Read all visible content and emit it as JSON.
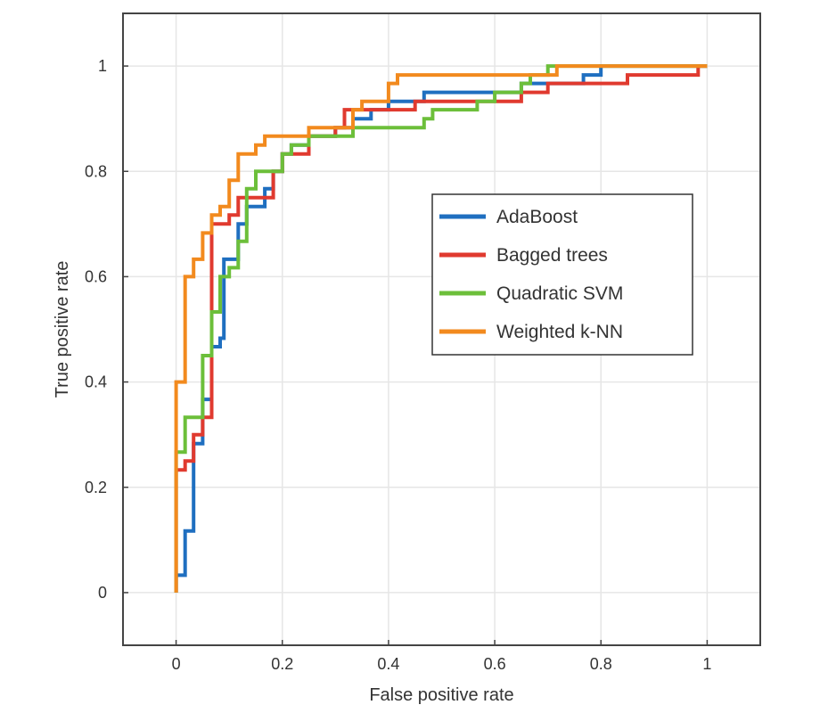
{
  "chart_data": {
    "type": "line",
    "title": "",
    "xlabel": "False positive rate",
    "ylabel": "True positive rate",
    "xlim": [
      -0.1,
      1.1
    ],
    "ylim": [
      -0.1,
      1.1
    ],
    "grid": true,
    "legend_position": "right",
    "xticks": [
      0,
      0.2,
      0.4,
      0.6,
      0.8,
      1
    ],
    "xtick_labels": [
      "0",
      "0.2",
      "0.4",
      "0.6",
      "0.8",
      "1"
    ],
    "yticks": [
      0,
      0.2,
      0.4,
      0.6,
      0.8,
      1
    ],
    "ytick_labels": [
      "0",
      "0.2",
      "0.4",
      "0.6",
      "0.8",
      "1"
    ],
    "series": [
      {
        "name": "AdaBoost",
        "color": "#1f6fc0",
        "points": [
          [
            0,
            0
          ],
          [
            0,
            0.033
          ],
          [
            0.017,
            0.033
          ],
          [
            0.017,
            0.117
          ],
          [
            0.033,
            0.117
          ],
          [
            0.033,
            0.283
          ],
          [
            0.05,
            0.283
          ],
          [
            0.05,
            0.367
          ],
          [
            0.067,
            0.367
          ],
          [
            0.067,
            0.467
          ],
          [
            0.083,
            0.467
          ],
          [
            0.083,
            0.483
          ],
          [
            0.09,
            0.483
          ],
          [
            0.09,
            0.633
          ],
          [
            0.117,
            0.633
          ],
          [
            0.117,
            0.7
          ],
          [
            0.133,
            0.7
          ],
          [
            0.133,
            0.733
          ],
          [
            0.167,
            0.733
          ],
          [
            0.167,
            0.767
          ],
          [
            0.183,
            0.767
          ],
          [
            0.183,
            0.8
          ],
          [
            0.2,
            0.8
          ],
          [
            0.2,
            0.833
          ],
          [
            0.217,
            0.833
          ],
          [
            0.217,
            0.85
          ],
          [
            0.25,
            0.85
          ],
          [
            0.25,
            0.867
          ],
          [
            0.3,
            0.867
          ],
          [
            0.3,
            0.883
          ],
          [
            0.333,
            0.883
          ],
          [
            0.333,
            0.9
          ],
          [
            0.367,
            0.9
          ],
          [
            0.367,
            0.917
          ],
          [
            0.4,
            0.917
          ],
          [
            0.4,
            0.933
          ],
          [
            0.467,
            0.933
          ],
          [
            0.467,
            0.95
          ],
          [
            0.65,
            0.95
          ],
          [
            0.65,
            0.967
          ],
          [
            0.767,
            0.967
          ],
          [
            0.767,
            0.983
          ],
          [
            0.8,
            0.983
          ],
          [
            0.8,
            1
          ],
          [
            1,
            1
          ]
        ]
      },
      {
        "name": "Bagged trees",
        "color": "#e03a2f",
        "points": [
          [
            0,
            0
          ],
          [
            0,
            0.233
          ],
          [
            0.017,
            0.233
          ],
          [
            0.017,
            0.25
          ],
          [
            0.033,
            0.25
          ],
          [
            0.033,
            0.3
          ],
          [
            0.05,
            0.3
          ],
          [
            0.05,
            0.333
          ],
          [
            0.067,
            0.333
          ],
          [
            0.067,
            0.7
          ],
          [
            0.1,
            0.7
          ],
          [
            0.1,
            0.717
          ],
          [
            0.117,
            0.717
          ],
          [
            0.117,
            0.75
          ],
          [
            0.183,
            0.75
          ],
          [
            0.183,
            0.8
          ],
          [
            0.2,
            0.8
          ],
          [
            0.2,
            0.833
          ],
          [
            0.25,
            0.833
          ],
          [
            0.25,
            0.867
          ],
          [
            0.3,
            0.867
          ],
          [
            0.3,
            0.883
          ],
          [
            0.317,
            0.883
          ],
          [
            0.317,
            0.917
          ],
          [
            0.45,
            0.917
          ],
          [
            0.45,
            0.933
          ],
          [
            0.65,
            0.933
          ],
          [
            0.65,
            0.95
          ],
          [
            0.7,
            0.95
          ],
          [
            0.7,
            0.967
          ],
          [
            0.85,
            0.967
          ],
          [
            0.85,
            0.983
          ],
          [
            0.983,
            0.983
          ],
          [
            0.983,
            1
          ],
          [
            1,
            1
          ]
        ]
      },
      {
        "name": "Quadratic SVM",
        "color": "#6cbf3a",
        "points": [
          [
            0,
            0
          ],
          [
            0,
            0.267
          ],
          [
            0.017,
            0.267
          ],
          [
            0.017,
            0.333
          ],
          [
            0.05,
            0.333
          ],
          [
            0.05,
            0.45
          ],
          [
            0.067,
            0.45
          ],
          [
            0.067,
            0.533
          ],
          [
            0.083,
            0.533
          ],
          [
            0.083,
            0.6
          ],
          [
            0.1,
            0.6
          ],
          [
            0.1,
            0.617
          ],
          [
            0.117,
            0.617
          ],
          [
            0.117,
            0.667
          ],
          [
            0.133,
            0.667
          ],
          [
            0.133,
            0.767
          ],
          [
            0.15,
            0.767
          ],
          [
            0.15,
            0.8
          ],
          [
            0.2,
            0.8
          ],
          [
            0.2,
            0.833
          ],
          [
            0.217,
            0.833
          ],
          [
            0.217,
            0.85
          ],
          [
            0.25,
            0.85
          ],
          [
            0.25,
            0.867
          ],
          [
            0.333,
            0.867
          ],
          [
            0.333,
            0.883
          ],
          [
            0.467,
            0.883
          ],
          [
            0.467,
            0.9
          ],
          [
            0.483,
            0.9
          ],
          [
            0.483,
            0.917
          ],
          [
            0.567,
            0.917
          ],
          [
            0.567,
            0.933
          ],
          [
            0.6,
            0.933
          ],
          [
            0.6,
            0.95
          ],
          [
            0.65,
            0.95
          ],
          [
            0.65,
            0.967
          ],
          [
            0.667,
            0.967
          ],
          [
            0.667,
            0.983
          ],
          [
            0.7,
            0.983
          ],
          [
            0.7,
            1
          ],
          [
            1,
            1
          ]
        ]
      },
      {
        "name": "Weighted k-NN",
        "color": "#f28a1e",
        "points": [
          [
            0,
            0
          ],
          [
            0,
            0.4
          ],
          [
            0.017,
            0.4
          ],
          [
            0.017,
            0.6
          ],
          [
            0.033,
            0.6
          ],
          [
            0.033,
            0.633
          ],
          [
            0.05,
            0.633
          ],
          [
            0.05,
            0.683
          ],
          [
            0.067,
            0.683
          ],
          [
            0.067,
            0.717
          ],
          [
            0.083,
            0.717
          ],
          [
            0.083,
            0.733
          ],
          [
            0.1,
            0.733
          ],
          [
            0.1,
            0.783
          ],
          [
            0.117,
            0.783
          ],
          [
            0.117,
            0.833
          ],
          [
            0.15,
            0.833
          ],
          [
            0.15,
            0.85
          ],
          [
            0.167,
            0.85
          ],
          [
            0.167,
            0.867
          ],
          [
            0.25,
            0.867
          ],
          [
            0.25,
            0.883
          ],
          [
            0.333,
            0.883
          ],
          [
            0.333,
            0.917
          ],
          [
            0.35,
            0.917
          ],
          [
            0.35,
            0.933
          ],
          [
            0.4,
            0.933
          ],
          [
            0.4,
            0.967
          ],
          [
            0.417,
            0.967
          ],
          [
            0.417,
            0.983
          ],
          [
            0.717,
            0.983
          ],
          [
            0.717,
            1
          ],
          [
            1,
            1
          ]
        ]
      }
    ]
  }
}
